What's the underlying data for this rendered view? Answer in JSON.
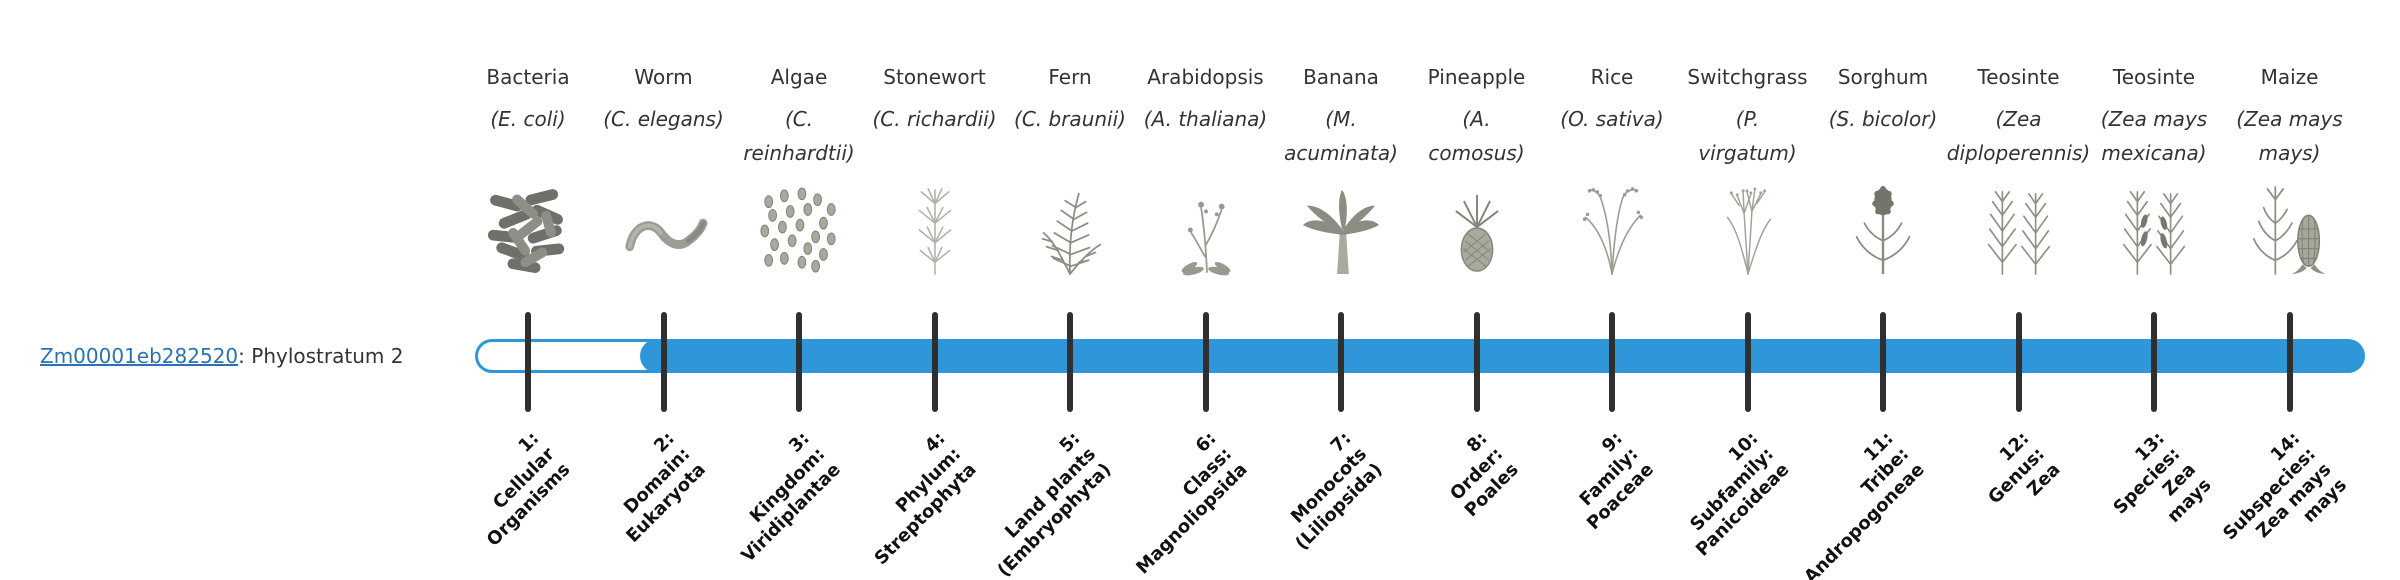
{
  "gene": {
    "link_text": "Zm00001eb282520",
    "suffix_text": ": Phylostratum 2",
    "phylostratum": 2
  },
  "colors": {
    "bar_fill": "#2f97d9",
    "bar_empty": "#ffffff",
    "tick": "#2f2f2f",
    "link": "#2a72b5"
  },
  "organisms": [
    {
      "name": "Bacteria",
      "sci": "(E. coli)",
      "icon": "bacteria-icon"
    },
    {
      "name": "Worm",
      "sci": "(C. elegans)",
      "icon": "worm-icon"
    },
    {
      "name": "Algae",
      "sci": "(C.\nreinhardtii)",
      "icon": "algae-icon"
    },
    {
      "name": "Stonewort",
      "sci": "(C. richardii)",
      "icon": "stonewort-icon"
    },
    {
      "name": "Fern",
      "sci": "(C. braunii)",
      "icon": "fern-icon"
    },
    {
      "name": "Arabidopsis",
      "sci": "(A. thaliana)",
      "icon": "arabidopsis-icon"
    },
    {
      "name": "Banana",
      "sci": "(M.\nacuminata)",
      "icon": "banana-icon"
    },
    {
      "name": "Pineapple",
      "sci": "(A.\ncomosus)",
      "icon": "pineapple-icon"
    },
    {
      "name": "Rice",
      "sci": "(O. sativa)",
      "icon": "rice-icon"
    },
    {
      "name": "Switchgrass",
      "sci": "(P.\nvirgatum)",
      "icon": "switchgrass-icon"
    },
    {
      "name": "Sorghum",
      "sci": "(S. bicolor)",
      "icon": "sorghum-icon"
    },
    {
      "name": "Teosinte",
      "sci": "(Zea\ndiploperennis)",
      "icon": "teosinte-icon"
    },
    {
      "name": "Teosinte",
      "sci": "(Zea mays\nmexicana)",
      "icon": "teosinte-icon-2"
    },
    {
      "name": "Maize",
      "sci": "(Zea mays\nmays)",
      "icon": "maize-icon"
    }
  ],
  "strata": [
    {
      "label": "1:\nCellular\nOrganisms"
    },
    {
      "label": "2:\nDomain:\nEukaryota"
    },
    {
      "label": "3:\nKingdom:\nViridiplantae"
    },
    {
      "label": "4:\nPhylum:\nStreptophyta"
    },
    {
      "label": "5:\nLand plants\n(Embryophyta)"
    },
    {
      "label": "6:\nClass:\nMagnoliopsida"
    },
    {
      "label": "7:\nMonocots\n(Liliopsida)"
    },
    {
      "label": "8:\nOrder:\nPoales"
    },
    {
      "label": "9:\nFamily:\nPoaceae"
    },
    {
      "label": "10:\nSubfamily:\nPanicoideae"
    },
    {
      "label": "11:\nTribe:\nAndropogoneae"
    },
    {
      "label": "12:\nGenus:\nZea"
    },
    {
      "label": "13:\nSpecies:\nZea\nmays"
    },
    {
      "label": "14:\nSubspecies:\nZea mays\nmays"
    }
  ],
  "chart_data": {
    "type": "bar",
    "title": "Zm00001eb282520: Phylostratum 2",
    "orientation": "horizontal",
    "categories": [
      "1: Cellular Organisms",
      "2: Domain: Eukaryota",
      "3: Kingdom: Viridiplantae",
      "4: Phylum: Streptophyta",
      "5: Land plants (Embryophyta)",
      "6: Class: Magnoliopsida",
      "7: Monocots (Liliopsida)",
      "8: Order: Poales",
      "9: Family: Poaceae",
      "10: Subfamily: Panicoideae",
      "11: Tribe: Andropogoneae",
      "12: Genus: Zea",
      "13: Species: Zea mays",
      "14: Subspecies: Zea mays mays"
    ],
    "tick_organisms": [
      "Bacteria (E. coli)",
      "Worm (C. elegans)",
      "Algae (C. reinhardtii)",
      "Stonewort (C. richardii)",
      "Fern (C. braunii)",
      "Arabidopsis (A. thaliana)",
      "Banana (M. acuminata)",
      "Pineapple (A. comosus)",
      "Rice (O. sativa)",
      "Switchgrass (P. virgatum)",
      "Sorghum (S. bicolor)",
      "Teosinte (Zea diploperennis)",
      "Teosinte (Zea mays mexicana)",
      "Maize (Zea mays mays)"
    ],
    "gene_phylostratum": 2,
    "filled_range": [
      2,
      14
    ],
    "annotation": "Horizontal capsule bar; unfilled (white) before stratum 2, filled blue from stratum 2 to stratum 14"
  }
}
